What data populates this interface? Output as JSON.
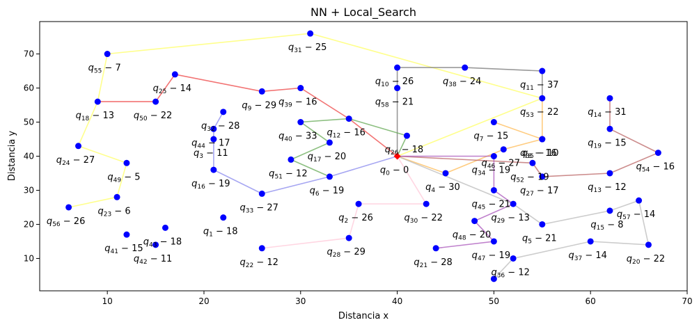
{
  "chart_data": {
    "type": "scatter",
    "title": "NN + Local_Search",
    "xlabel": "Distancia x",
    "ylabel": "Distancia y",
    "xlim": [
      3,
      70
    ],
    "ylim": [
      0.5,
      79.5
    ],
    "xticks": [
      10,
      20,
      30,
      40,
      50,
      60,
      70
    ],
    "yticks": [
      10,
      20,
      30,
      40,
      50,
      60,
      70
    ],
    "grid": false,
    "legend": "none",
    "point_color": "#0000ff",
    "depot_color": "#ff0000",
    "points": [
      {
        "id": 0,
        "x": 40,
        "y": 40,
        "label": "q_0 - 0",
        "depot": true
      },
      {
        "id": 1,
        "x": 22,
        "y": 22,
        "label": "q_1 - 18"
      },
      {
        "id": 2,
        "x": 36,
        "y": 26,
        "label": "q_2 - 26"
      },
      {
        "id": 3,
        "x": 21,
        "y": 45,
        "label": "q_3 - 11"
      },
      {
        "id": 4,
        "x": 45,
        "y": 35,
        "label": "q_4 - 30"
      },
      {
        "id": 5,
        "x": 55,
        "y": 20,
        "label": "q_5 - 21"
      },
      {
        "id": 6,
        "x": 33,
        "y": 34,
        "label": "q_6 - 19"
      },
      {
        "id": 7,
        "x": 50,
        "y": 50,
        "label": "q_7 - 15"
      },
      {
        "id": 8,
        "x": 55,
        "y": 45,
        "label": "q_8 - 16"
      },
      {
        "id": 9,
        "x": 26,
        "y": 59,
        "label": "q_9 - 29"
      },
      {
        "id": 10,
        "x": 40,
        "y": 66,
        "label": "q_10 - 26"
      },
      {
        "id": 11,
        "x": 55,
        "y": 65,
        "label": "q_11 - 37"
      },
      {
        "id": 12,
        "x": 35,
        "y": 51,
        "label": "q_12 - 16"
      },
      {
        "id": 13,
        "x": 62,
        "y": 35,
        "label": "q_13 - 12"
      },
      {
        "id": 14,
        "x": 62,
        "y": 57,
        "label": "q_14 - 31"
      },
      {
        "id": 15,
        "x": 62,
        "y": 24,
        "label": "q_15 - 8"
      },
      {
        "id": 16,
        "x": 21,
        "y": 36,
        "label": "q_16 - 19"
      },
      {
        "id": 17,
        "x": 33,
        "y": 44,
        "label": "q_17 - 20"
      },
      {
        "id": 18,
        "x": 9,
        "y": 56,
        "label": "q_18 - 13"
      },
      {
        "id": 19,
        "x": 62,
        "y": 48,
        "label": "q_19 - 15"
      },
      {
        "id": 20,
        "x": 66,
        "y": 14,
        "label": "q_20 - 22"
      },
      {
        "id": 21,
        "x": 44,
        "y": 13,
        "label": "q_21 - 28"
      },
      {
        "id": 22,
        "x": 26,
        "y": 13,
        "label": "q_22 - 12"
      },
      {
        "id": 23,
        "x": 11,
        "y": 28,
        "label": "q_23 - 6"
      },
      {
        "id": 24,
        "x": 7,
        "y": 43,
        "label": "q_24 - 27"
      },
      {
        "id": 25,
        "x": 17,
        "y": 64,
        "label": "q_25 - 14"
      },
      {
        "id": 26,
        "x": 41,
        "y": 46,
        "label": "q_26 - 18"
      },
      {
        "id": 27,
        "x": 55,
        "y": 34,
        "label": "q_27 - 17"
      },
      {
        "id": 28,
        "x": 35,
        "y": 16,
        "label": "q_28 - 29"
      },
      {
        "id": 29,
        "x": 52,
        "y": 26,
        "label": "q_29 - 13"
      },
      {
        "id": 30,
        "x": 43,
        "y": 26,
        "label": "q_30 - 22"
      },
      {
        "id": 31,
        "x": 31,
        "y": 76,
        "label": "q_31 - 25"
      },
      {
        "id": 32,
        "x": 22,
        "y": 53,
        "label": "q_32 - 28"
      },
      {
        "id": 33,
        "x": 26,
        "y": 29,
        "label": "q_33 - 27"
      },
      {
        "id": 34,
        "x": 50,
        "y": 40,
        "label": "q_34 - 19"
      },
      {
        "id": 35,
        "x": 55,
        "y": 45,
        "label": "q_35 - 10"
      },
      {
        "id": 36,
        "x": 52,
        "y": 10,
        "label": "q_36 - 12"
      },
      {
        "id": 37,
        "x": 60,
        "y": 15,
        "label": "q_37 - 14"
      },
      {
        "id": 38,
        "x": 47,
        "y": 66,
        "label": "q_38 - 24"
      },
      {
        "id": 39,
        "x": 30,
        "y": 60,
        "label": "q_39 - 16"
      },
      {
        "id": 40,
        "x": 30,
        "y": 50,
        "label": "q_40 - 33"
      },
      {
        "id": 41,
        "x": 12,
        "y": 17,
        "label": "q_41 - 15"
      },
      {
        "id": 42,
        "x": 15,
        "y": 14,
        "label": "q_42 - 11"
      },
      {
        "id": 43,
        "x": 16,
        "y": 19,
        "label": "q_43 - 18"
      },
      {
        "id": 44,
        "x": 21,
        "y": 48,
        "label": "q_44 - 17"
      },
      {
        "id": 45,
        "x": 50,
        "y": 30,
        "label": "q_45 - 21"
      },
      {
        "id": 46,
        "x": 51,
        "y": 42,
        "label": "q_46 - 27"
      },
      {
        "id": 47,
        "x": 50,
        "y": 15,
        "label": "q_47 - 19"
      },
      {
        "id": 48,
        "x": 48,
        "y": 21,
        "label": "q_48 - 20"
      },
      {
        "id": 49,
        "x": 12,
        "y": 38,
        "label": "q_49 - 5"
      },
      {
        "id": 50,
        "x": 15,
        "y": 56,
        "label": "q_50 - 22"
      },
      {
        "id": 51,
        "x": 29,
        "y": 39,
        "label": "q_51 - 12"
      },
      {
        "id": 52,
        "x": 54,
        "y": 38,
        "label": "q_52 - 19"
      },
      {
        "id": 53,
        "x": 55,
        "y": 57,
        "label": "q_53 - 22"
      },
      {
        "id": 54,
        "x": 67,
        "y": 41,
        "label": "q_54 - 16"
      },
      {
        "id": 55,
        "x": 10,
        "y": 70,
        "label": "q_55 - 7"
      },
      {
        "id": 56,
        "x": 6,
        "y": 25,
        "label": "q_56 - 26"
      },
      {
        "id": 57,
        "x": 65,
        "y": 27,
        "label": "q_57 - 14"
      },
      {
        "id": 58,
        "x": 40,
        "y": 60,
        "label": "q_58 - 21"
      },
      {
        "id": 99,
        "x": 50,
        "y": 4,
        "label": ""
      }
    ],
    "routes": [
      {
        "color": "#ffff66",
        "path": [
          0,
          53,
          31,
          55,
          18,
          24,
          49,
          23,
          56
        ]
      },
      {
        "color": "#ee4444",
        "path": [
          0,
          12,
          39,
          9,
          25,
          50,
          18
        ]
      },
      {
        "color": "#777777",
        "path": [
          0,
          58,
          10,
          38,
          11,
          53
        ]
      },
      {
        "color": "#66aa55",
        "path": [
          0,
          26,
          12,
          40,
          17,
          51,
          6
        ]
      },
      {
        "color": "#8888ee",
        "path": [
          0,
          6,
          33,
          16,
          3,
          44,
          32
        ]
      },
      {
        "color": "#ffbb55",
        "path": [
          0,
          4,
          46,
          8,
          7,
          35,
          53
        ]
      },
      {
        "color": "#bb6666",
        "path": [
          0,
          52,
          27,
          13,
          54,
          19,
          14
        ]
      },
      {
        "color": "#bbbbbb",
        "path": [
          0,
          29,
          5,
          15,
          57,
          20,
          37,
          36,
          99
        ]
      },
      {
        "color": "#aa55bb",
        "path": [
          0,
          34,
          45,
          29,
          48,
          47,
          21
        ]
      },
      {
        "color": "#ffc8d8",
        "path": [
          0,
          30,
          2,
          28,
          22
        ]
      }
    ]
  }
}
